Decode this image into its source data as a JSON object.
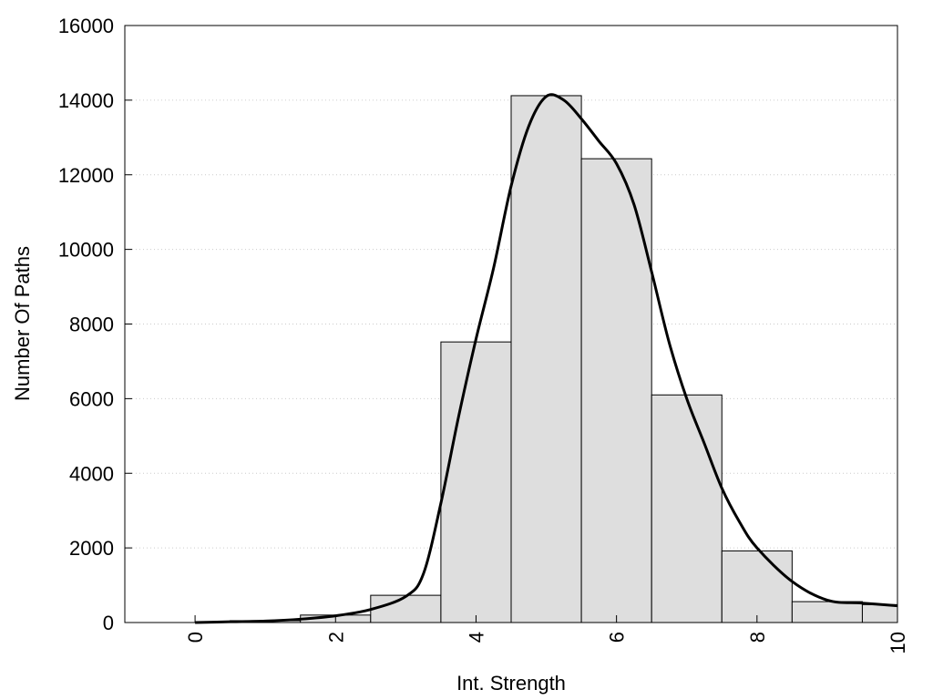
{
  "chart_data": {
    "type": "bar",
    "title": "",
    "xlabel": "Int. Strength",
    "ylabel": "Number Of Paths",
    "xlim": [
      -1,
      10
    ],
    "ylim": [
      0,
      16000
    ],
    "x_ticks": [
      "0",
      "2",
      "4",
      "6",
      "8",
      "10"
    ],
    "y_ticks": [
      "0",
      "2000",
      "4000",
      "6000",
      "8000",
      "10000",
      "12000",
      "14000",
      "16000"
    ],
    "grid": "horizontal dotted",
    "legend": "none",
    "bar_color": "#dedede",
    "bins": [
      {
        "x": 0,
        "value": 0
      },
      {
        "x": 1,
        "value": 50
      },
      {
        "x": 2,
        "value": 200
      },
      {
        "x": 3,
        "value": 730
      },
      {
        "x": 4,
        "value": 7520
      },
      {
        "x": 5,
        "value": 14120
      },
      {
        "x": 6,
        "value": 12430
      },
      {
        "x": 7,
        "value": 6100
      },
      {
        "x": 8,
        "value": 1920
      },
      {
        "x": 9,
        "value": 560
      },
      {
        "x": 10,
        "value": 480
      }
    ],
    "bin_width": 1,
    "curve": {
      "x": [
        0,
        0.5,
        1,
        1.5,
        2,
        2.5,
        3,
        3.25,
        3.5,
        3.75,
        4,
        4.25,
        4.5,
        4.75,
        5,
        5.25,
        5.5,
        5.75,
        6,
        6.25,
        6.5,
        6.75,
        7,
        7.25,
        7.5,
        7.75,
        8,
        8.5,
        9,
        9.5,
        10
      ],
      "y": [
        0,
        20,
        40,
        90,
        180,
        350,
        700,
        1300,
        3200,
        5500,
        7600,
        9500,
        11700,
        13300,
        14100,
        14000,
        13500,
        12900,
        12300,
        11200,
        9400,
        7500,
        6000,
        4800,
        3600,
        2700,
        2000,
        1100,
        600,
        520,
        450
      ]
    }
  }
}
